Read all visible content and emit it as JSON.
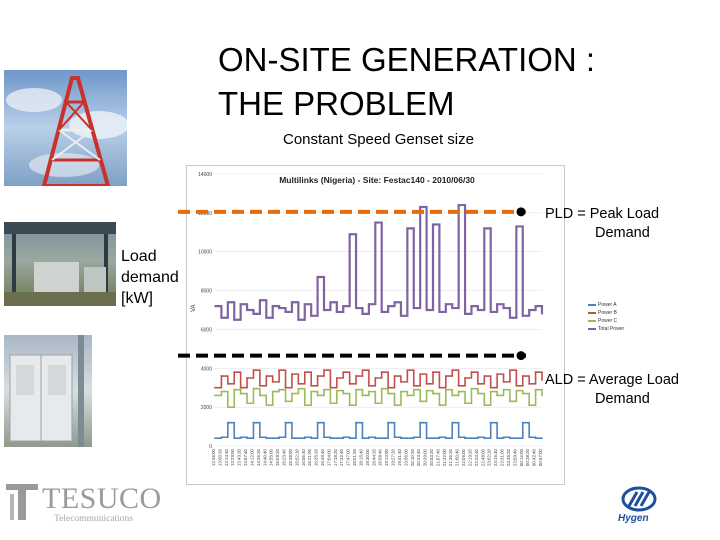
{
  "slide": {
    "title_line1": "ON-SITE GENERATION :",
    "title_line2": "THE PROBLEM",
    "subtitle": "Constant Speed Genset size",
    "ylabel_line1": "Load",
    "ylabel_line2": "demand",
    "ylabel_line3": "[kW]",
    "callouts": {
      "pld_line1": "PLD = Peak Load",
      "pld_line2": "Demand",
      "ald_line1": "ALD = Average Load",
      "ald_line2": "Demand"
    }
  },
  "logos": {
    "tesuco_word": "TESUCO",
    "tesuco_sub": "Telecommunications",
    "hygen_word": "Hygen"
  },
  "colors": {
    "power_a": "#4f81bd",
    "power_b": "#c0504d",
    "power_c": "#9bbb59",
    "total_power": "#8064a2",
    "pld_line": "#e46c0a",
    "ald_line": "#000000"
  },
  "chart_data": {
    "type": "line",
    "title": "Multilinks (Nigeria) - Site: Festac140 - 2010/06/30",
    "ylabel": "VA",
    "yticks": [
      0,
      2000,
      4000,
      6000,
      8000,
      10000,
      12000,
      14000
    ],
    "ylim": [
      0,
      14000
    ],
    "grid": true,
    "legend_position": "right",
    "xticks": [
      "12:46:00",
      "13:00:20",
      "13:14:40",
      "13:29:00",
      "13:43:20",
      "13:57:40",
      "14:12:00",
      "14:26:20",
      "14:40:40",
      "14:55:00",
      "15:09:20",
      "15:23:40",
      "15:38:00",
      "15:52:20",
      "16:06:40",
      "16:21:00",
      "16:35:20",
      "16:49:40",
      "17:04:00",
      "17:18:20",
      "17:32:40",
      "17:47:00",
      "18:01:20",
      "18:15:40",
      "18:30:00",
      "18:44:20",
      "18:58:40",
      "19:13:00",
      "19:27:20",
      "19:41:40",
      "19:56:00",
      "20:10:20",
      "20:24:40",
      "20:39:00",
      "20:53:20",
      "21:07:40",
      "21:22:00",
      "21:36:20",
      "21:50:40",
      "22:05:00",
      "22:19:20",
      "22:33:40",
      "22:48:00",
      "23:02:20",
      "23:16:40",
      "23:31:00",
      "23:45:20",
      "23:59:40",
      "00:14:00",
      "00:28:20",
      "00:42:40",
      "00:57:00"
    ],
    "series": [
      {
        "name": "Power A",
        "values": [
          400,
          450,
          1200,
          400,
          450,
          400,
          1200,
          450,
          400,
          400,
          450,
          1200,
          400,
          400,
          450,
          400,
          1200,
          450,
          400,
          400,
          450,
          400,
          1200,
          400,
          450,
          400,
          400,
          1200,
          450,
          400,
          400,
          450,
          1200,
          400,
          400,
          450,
          400,
          1200,
          450,
          400,
          400,
          450,
          400,
          1200,
          400,
          450,
          400,
          400,
          1200,
          450,
          400,
          400
        ]
      },
      {
        "name": "Power B",
        "values": [
          3000,
          3600,
          3200,
          3800,
          3000,
          3500,
          3900,
          3100,
          3600,
          3300,
          3900,
          3000,
          3700,
          3200,
          3800,
          3100,
          3600,
          3900,
          3000,
          3500,
          3800,
          3200,
          3600,
          3900,
          3100,
          3500,
          3800,
          3000,
          3600,
          3300,
          3900,
          3100,
          3700,
          3200,
          3800,
          3000,
          3600,
          3900,
          3100,
          3500,
          3800,
          3200,
          3600,
          3000,
          3700,
          3300,
          3900,
          3100,
          3600,
          3200,
          3800,
          3400
        ]
      },
      {
        "name": "Power C",
        "values": [
          2600,
          2800,
          2000,
          2900,
          2700,
          2200,
          2950,
          2600,
          2100,
          2800,
          2900,
          2300,
          2700,
          2950,
          2100,
          2800,
          2600,
          2900,
          2200,
          2850,
          2700,
          2100,
          2900,
          2600,
          2800,
          2200,
          2950,
          2700,
          2100,
          2800,
          2600,
          2900,
          2300,
          2850,
          2700,
          2100,
          2900,
          2600,
          2800,
          2200,
          2950,
          2700,
          2100,
          2800,
          2600,
          2900,
          2300,
          2850,
          2700,
          2100,
          2900,
          2600
        ]
      },
      {
        "name": "Total Power",
        "values": [
          7200,
          6600,
          7400,
          6500,
          7300,
          7000,
          6800,
          7500,
          6600,
          7200,
          7100,
          6900,
          7400,
          6500,
          7300,
          6700,
          8700,
          7000,
          7400,
          6900,
          7200,
          10900,
          7100,
          6800,
          7300,
          11500,
          6900,
          7200,
          7400,
          6700,
          11200,
          7100,
          12300,
          7000,
          11400,
          6900,
          7300,
          7100,
          12400,
          6800,
          7200,
          7000,
          11200,
          6900,
          7300,
          7100,
          6600,
          11300,
          6700,
          7000,
          7200,
          6800
        ]
      }
    ],
    "reference_lines": [
      {
        "name": "PLD",
        "value": 12000
      },
      {
        "name": "ALD",
        "value": 4600
      }
    ]
  }
}
